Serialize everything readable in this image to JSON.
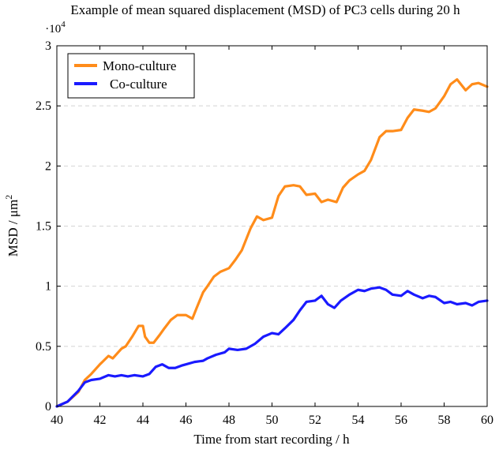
{
  "chart_data": {
    "type": "line",
    "title": "Example of mean squared displacement (MSD) of PC3 cells during 20 h",
    "xlabel": "Time from start recording / h",
    "ylabel": "MSD / μm²",
    "ylabel_parts": {
      "base": "MSD / μm",
      "sup": "2"
    },
    "y_multiplier": {
      "base": "·10",
      "exp": "4"
    },
    "xlim": [
      40,
      60
    ],
    "ylim": [
      0,
      3
    ],
    "xticks": [
      40,
      42,
      44,
      46,
      48,
      50,
      52,
      54,
      56,
      58,
      60
    ],
    "yticks": [
      0,
      0.5,
      1,
      1.5,
      2,
      2.5,
      3
    ],
    "ytick_labels": [
      "0",
      "0.5",
      "1",
      "1.5",
      "2",
      "2.5",
      "3"
    ],
    "grid": "horizontal-dashed",
    "legend_position": "top-left",
    "series": [
      {
        "name": "Mono-culture",
        "color": "#ff8c1a",
        "x": [
          40,
          40.5,
          41,
          41.3,
          41.6,
          42,
          42.4,
          42.6,
          43,
          43.2,
          43.5,
          43.8,
          44,
          44.1,
          44.3,
          44.5,
          44.8,
          45,
          45.3,
          45.6,
          46,
          46.3,
          46.5,
          46.8,
          47,
          47.3,
          47.6,
          48,
          48.3,
          48.6,
          49,
          49.3,
          49.6,
          50,
          50.3,
          50.6,
          51,
          51.3,
          51.6,
          52,
          52.3,
          52.6,
          53,
          53.3,
          53.6,
          54,
          54.3,
          54.6,
          55,
          55.3,
          55.6,
          56,
          56.3,
          56.6,
          57,
          57.3,
          57.6,
          58,
          58.3,
          58.6,
          59,
          59.3,
          59.6,
          60
        ],
        "y": [
          0,
          0.04,
          0.12,
          0.22,
          0.27,
          0.35,
          0.42,
          0.4,
          0.48,
          0.5,
          0.58,
          0.67,
          0.67,
          0.58,
          0.53,
          0.53,
          0.6,
          0.65,
          0.72,
          0.76,
          0.76,
          0.73,
          0.82,
          0.95,
          1.0,
          1.08,
          1.12,
          1.15,
          1.22,
          1.3,
          1.48,
          1.58,
          1.55,
          1.57,
          1.75,
          1.83,
          1.84,
          1.83,
          1.76,
          1.77,
          1.7,
          1.72,
          1.7,
          1.82,
          1.88,
          1.93,
          1.96,
          2.05,
          2.24,
          2.29,
          2.29,
          2.3,
          2.4,
          2.47,
          2.46,
          2.45,
          2.48,
          2.58,
          2.68,
          2.72,
          2.63,
          2.68,
          2.69,
          2.66
        ]
      },
      {
        "name": "Co-culture",
        "color": "#1a1aff",
        "x": [
          40,
          40.5,
          41,
          41.3,
          41.6,
          42,
          42.4,
          42.7,
          43,
          43.3,
          43.6,
          44,
          44.3,
          44.6,
          44.9,
          45.2,
          45.5,
          45.8,
          46,
          46.4,
          46.8,
          47,
          47.4,
          47.8,
          48,
          48.4,
          48.8,
          49.2,
          49.6,
          50,
          50.3,
          50.6,
          51,
          51.3,
          51.6,
          52,
          52.3,
          52.6,
          52.9,
          53.2,
          53.6,
          54,
          54.3,
          54.6,
          55,
          55.3,
          55.6,
          56,
          56.3,
          56.6,
          57,
          57.3,
          57.6,
          58,
          58.3,
          58.6,
          59,
          59.3,
          59.6,
          60
        ],
        "y": [
          0,
          0.04,
          0.13,
          0.2,
          0.22,
          0.23,
          0.26,
          0.25,
          0.26,
          0.25,
          0.26,
          0.25,
          0.27,
          0.33,
          0.35,
          0.32,
          0.32,
          0.34,
          0.35,
          0.37,
          0.38,
          0.4,
          0.43,
          0.45,
          0.48,
          0.47,
          0.48,
          0.52,
          0.58,
          0.61,
          0.6,
          0.65,
          0.72,
          0.8,
          0.87,
          0.88,
          0.92,
          0.85,
          0.82,
          0.88,
          0.93,
          0.97,
          0.96,
          0.98,
          0.99,
          0.97,
          0.93,
          0.92,
          0.96,
          0.93,
          0.9,
          0.92,
          0.91,
          0.86,
          0.87,
          0.85,
          0.86,
          0.84,
          0.87,
          0.88
        ]
      }
    ]
  }
}
